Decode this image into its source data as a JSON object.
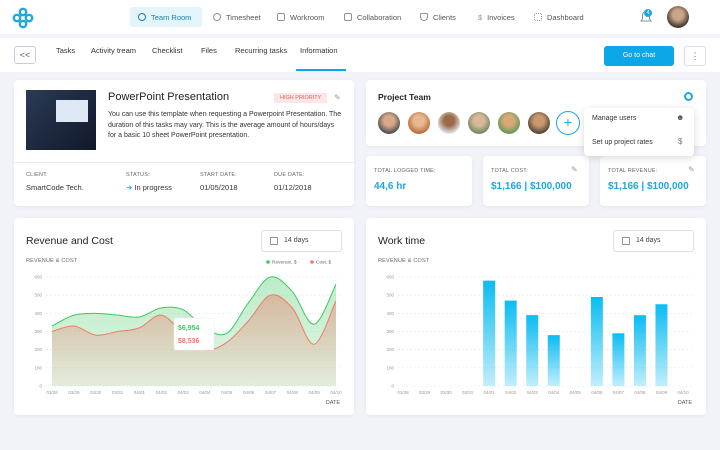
{
  "top_nav": {
    "items": [
      "Team Room",
      "Timesheet",
      "Workroom",
      "Collaboration",
      "Clients",
      "Invoices",
      "Dashboard"
    ],
    "active": 0,
    "notifications": "4"
  },
  "tabs": {
    "items": [
      "Tasks",
      "Activity tream",
      "Checklist",
      "Files",
      "Recurring tasks",
      "Information"
    ],
    "active": 5,
    "chat_button": "Go to chat"
  },
  "task": {
    "title": "PowerPoint Presentation",
    "priority": "HIGH PRIORITY",
    "description": "You can use this template when requesting a Powerpoint Presentation. The duration of this tasks may vary. This is the average amount of hours/days for a basic 10 sheet PowerPoint presentation.",
    "fields": [
      {
        "label": "CLIENT:",
        "value": "SmartCode Tech."
      },
      {
        "label": "STATUS:",
        "value": "In progress"
      },
      {
        "label": "START DATE:",
        "value": "01/05/2018"
      },
      {
        "label": "DUE DATE:",
        "value": "01/12/2018"
      }
    ]
  },
  "team": {
    "title": "Project Team",
    "menu": [
      "Manage users",
      "Set up project rates"
    ]
  },
  "stats": [
    {
      "label": "TOTAL LOGGED TIME:",
      "value": "44,6 hr"
    },
    {
      "label": "TOTAL COST:",
      "value": "$1,166 | $100,000"
    },
    {
      "label": "TOTAL REVENUE:",
      "value": "$1,166 | $100,000"
    }
  ],
  "revenue_chart": {
    "type": "area",
    "title": "Revenue and Cost",
    "range": "14 days",
    "subtitle": "REVENUE & COST",
    "x_label": "DATE",
    "categories": [
      "03/28",
      "03/29",
      "03/30",
      "03/31",
      "04/01",
      "04/02",
      "04/03",
      "04/04",
      "04/05",
      "04/06",
      "04/07",
      "04/08",
      "04/09",
      "04/10"
    ],
    "series": [
      {
        "name": "Revenue, $",
        "color": "#3fc860",
        "values": [
          330,
          390,
          400,
          390,
          380,
          430,
          420,
          320,
          290,
          460,
          600,
          520,
          340,
          560
        ]
      },
      {
        "name": "Cost, $",
        "color": "#f07a6a",
        "values": [
          300,
          330,
          280,
          300,
          320,
          390,
          290,
          200,
          240,
          360,
          500,
          430,
          230,
          470
        ]
      }
    ],
    "ylim": [
      0,
      600
    ],
    "yticks": [
      0,
      100,
      200,
      300,
      400,
      500,
      600
    ],
    "tooltip": {
      "revenue": "$6,954",
      "cost": "$8,536"
    }
  },
  "work_chart": {
    "type": "bar",
    "title": "Work time",
    "range": "14 days",
    "subtitle": "REVENUE & COST",
    "x_label": "DATE",
    "categories": [
      "03/28",
      "03/29",
      "03/30",
      "03/31",
      "04/01",
      "04/02",
      "04/03",
      "04/04",
      "04/05",
      "04/06",
      "04/07",
      "04/08",
      "04/09",
      "04/10"
    ],
    "values": [
      null,
      null,
      null,
      null,
      580,
      470,
      390,
      280,
      null,
      490,
      290,
      390,
      450,
      null
    ],
    "color": "#0bbcf2",
    "ylim": [
      0,
      600
    ],
    "yticks": [
      0,
      100,
      200,
      300,
      400,
      500,
      600
    ]
  }
}
